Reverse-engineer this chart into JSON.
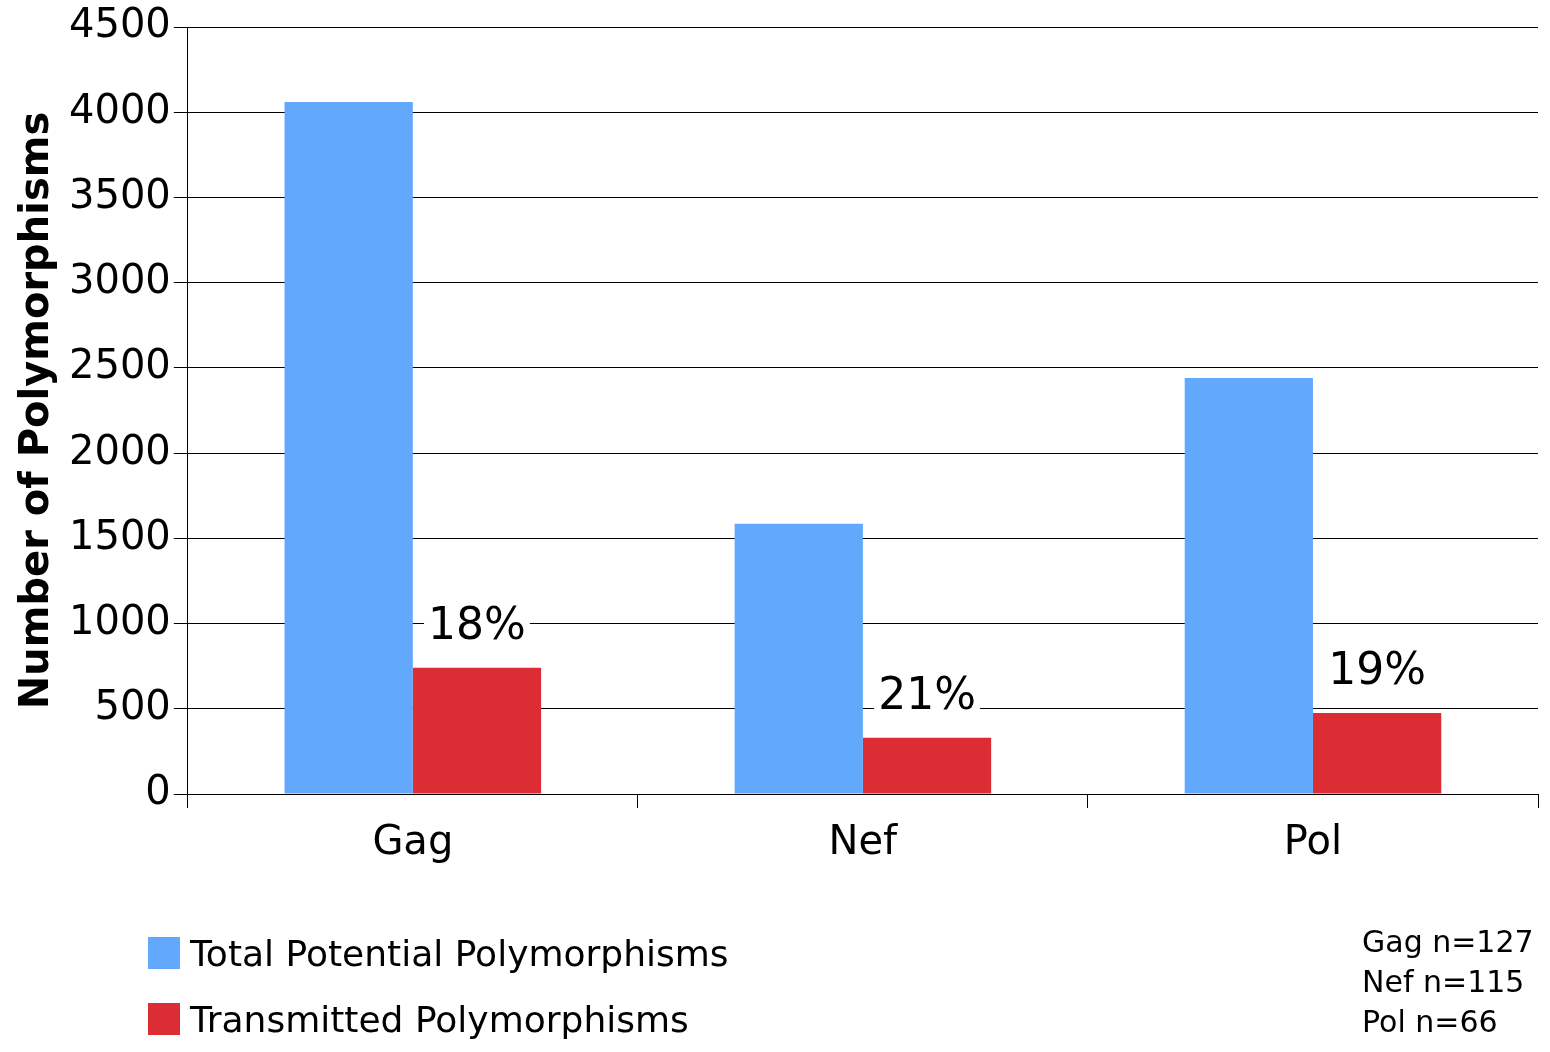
{
  "chart_data": {
    "type": "bar",
    "ylabel": "Number of Polymorphisms",
    "categories": [
      "Gag",
      "Nef",
      "Pol"
    ],
    "series": [
      {
        "name": "Total Potential Polymorphisms",
        "color": "#62a8fc",
        "values": [
          4060,
          1585,
          2440
        ]
      },
      {
        "name": "Transmitted Polymorphisms",
        "color": "#dc2d35",
        "values": [
          740,
          330,
          475
        ]
      }
    ],
    "ylim": [
      0,
      4500
    ],
    "yticks": [
      0,
      500,
      1000,
      1500,
      2000,
      2500,
      3000,
      3500,
      4000,
      4500
    ],
    "grid": "y",
    "legend": "bottom left",
    "annotations": [
      {
        "text": "18%",
        "x": "Gag",
        "y": 740
      },
      {
        "text": "21%",
        "x": "Nef",
        "y": 330
      },
      {
        "text": "19%",
        "x": "Pol",
        "y": 475
      },
      "Gag n=127",
      "Nef n=115",
      "Pol n=66"
    ]
  }
}
